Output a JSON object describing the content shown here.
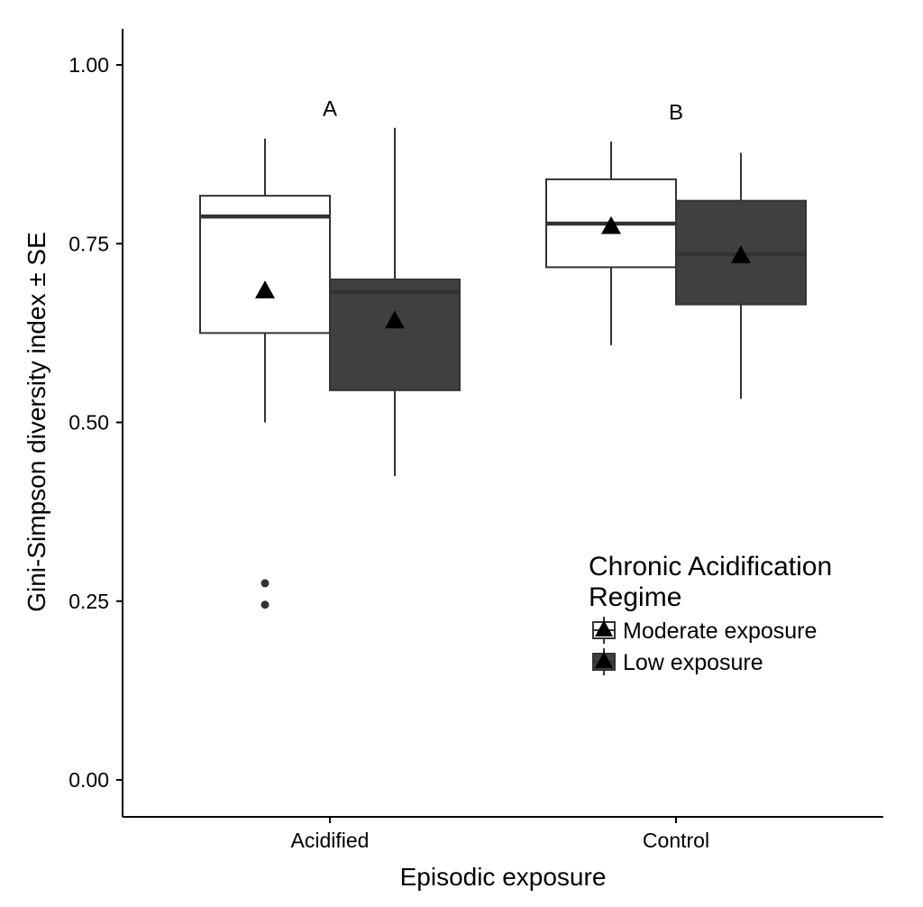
{
  "chart_data": {
    "type": "boxplot",
    "xlabel": "Episodic exposure",
    "ylabel": "Gini-Simpson diversity index ± SE",
    "ylim": [
      -0.05,
      1.05
    ],
    "yticks": [
      0.0,
      0.25,
      0.5,
      0.75,
      1.0
    ],
    "ytick_labels": [
      "0.00",
      "0.25",
      "0.50",
      "0.75",
      "1.00"
    ],
    "categories": [
      "Acidified",
      "Control"
    ],
    "series": [
      {
        "name": "Moderate exposure",
        "fill": "#ffffff",
        "boxes": [
          {
            "category": "Acidified",
            "whisker_low": 0.5,
            "q1": 0.625,
            "median": 0.788,
            "q3": 0.817,
            "whisker_high": 0.897,
            "mean": 0.683,
            "outliers": [
              0.275,
              0.245
            ]
          },
          {
            "category": "Control",
            "whisker_low": 0.608,
            "q1": 0.717,
            "median": 0.778,
            "q3": 0.84,
            "whisker_high": 0.893,
            "mean": 0.773,
            "outliers": []
          }
        ]
      },
      {
        "name": "Low exposure",
        "fill": "#404040",
        "boxes": [
          {
            "category": "Acidified",
            "whisker_low": 0.425,
            "q1": 0.545,
            "median": 0.682,
            "q3": 0.7,
            "whisker_high": 0.912,
            "mean": 0.641,
            "outliers": []
          },
          {
            "category": "Control",
            "whisker_low": 0.533,
            "q1": 0.665,
            "median": 0.735,
            "q3": 0.81,
            "whisker_high": 0.877,
            "mean": 0.732,
            "outliers": []
          }
        ]
      }
    ],
    "annotations": [
      {
        "text": "A",
        "category": "Acidified",
        "y": 0.94
      },
      {
        "text": "B",
        "category": "Control",
        "y": 0.935
      }
    ],
    "legend": {
      "title_lines": [
        "Chronic Acidification",
        "Regime"
      ],
      "placement": "inside-bottom-right"
    },
    "grid": false,
    "colors": {
      "axis": "#000000",
      "line": "#333333",
      "dark_fill": "#404040",
      "outlier": "#333333",
      "mean_marker": "#000000"
    }
  }
}
